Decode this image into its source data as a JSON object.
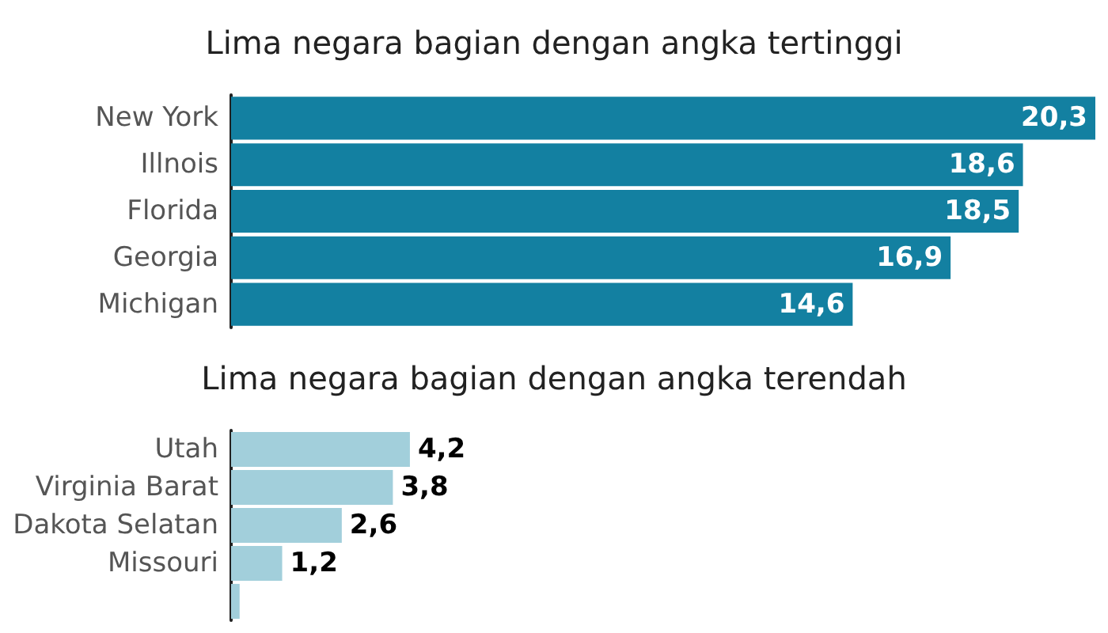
{
  "chart_data": [
    {
      "type": "bar",
      "orientation": "horizontal",
      "title": "Lima negara bagian dengan angka tertinggi",
      "categories": [
        "New York",
        "Illnois",
        "Florida",
        "Georgia",
        "Michigan"
      ],
      "values": [
        20.3,
        18.6,
        18.5,
        16.9,
        14.6
      ],
      "value_labels": [
        "20,3",
        "18,6",
        "18,5",
        "16,9",
        "14,6"
      ],
      "color": "#1380a1"
    },
    {
      "type": "bar",
      "orientation": "horizontal",
      "title": "Lima negara bagian dengan angka terendah",
      "categories": [
        "Utah",
        "Virginia Barat",
        "Dakota Selatan",
        "Missouri",
        null
      ],
      "values": [
        4.2,
        3.8,
        2.6,
        1.2,
        0.2
      ],
      "value_labels": [
        "4,2",
        "3,8",
        "2,6",
        "1,2",
        null
      ],
      "color": "#a2cfdb"
    }
  ]
}
